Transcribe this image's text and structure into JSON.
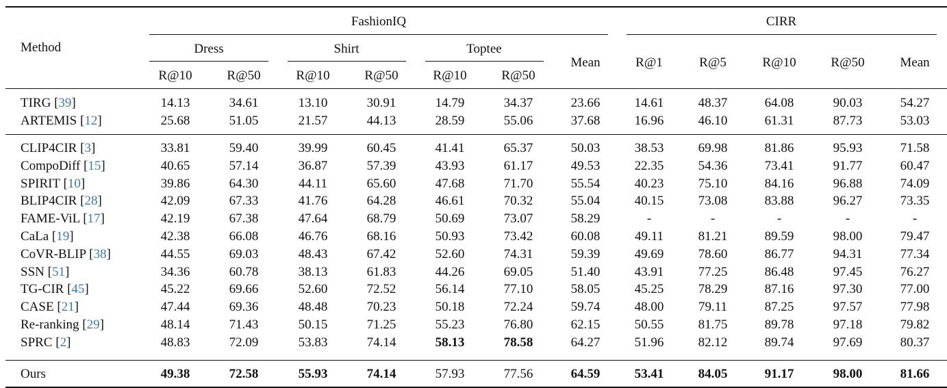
{
  "table": {
    "header": {
      "method": "Method",
      "groups": [
        {
          "label": "FashionIQ"
        },
        {
          "label": "CIRR"
        }
      ],
      "fashioniq_subgroups": [
        "Dress",
        "Shirt",
        "Toptee"
      ],
      "fashioniq_mean": "Mean",
      "fashioniq_metrics": [
        "R@10",
        "R@50",
        "R@10",
        "R@50",
        "R@10",
        "R@50"
      ],
      "cirr_metrics": [
        "R@1",
        "R@5",
        "R@10",
        "R@50",
        "Mean"
      ]
    },
    "columns": [
      "Dress R@10",
      "Dress R@50",
      "Shirt R@10",
      "Shirt R@50",
      "Toptee R@10",
      "Toptee R@50",
      "FashionIQ Mean",
      "CIRR R@1",
      "CIRR R@5",
      "CIRR R@10",
      "CIRR R@50",
      "CIRR Mean"
    ],
    "groups": [
      {
        "rows": [
          {
            "method": "TIRG",
            "cite": "39",
            "values": [
              "14.13",
              "34.61",
              "13.10",
              "30.91",
              "14.79",
              "34.37",
              "23.66",
              "14.61",
              "48.37",
              "64.08",
              "90.03",
              "54.27"
            ],
            "bold": []
          },
          {
            "method": "ARTEMIS",
            "cite": "12",
            "values": [
              "25.68",
              "51.05",
              "21.57",
              "44.13",
              "28.59",
              "55.06",
              "37.68",
              "16.96",
              "46.10",
              "61.31",
              "87.73",
              "53.03"
            ],
            "bold": []
          }
        ]
      },
      {
        "rows": [
          {
            "method": "CLIP4CIR",
            "cite": "3",
            "values": [
              "33.81",
              "59.40",
              "39.99",
              "60.45",
              "41.41",
              "65.37",
              "50.03",
              "38.53",
              "69.98",
              "81.86",
              "95.93",
              "71.58"
            ],
            "bold": []
          },
          {
            "method": "CompoDiff",
            "cite": "15",
            "values": [
              "40.65",
              "57.14",
              "36.87",
              "57.39",
              "43.93",
              "61.17",
              "49.53",
              "22.35",
              "54.36",
              "73.41",
              "91.77",
              "60.47"
            ],
            "bold": []
          },
          {
            "method": "SPIRIT",
            "cite": "10",
            "values": [
              "39.86",
              "64.30",
              "44.11",
              "65.60",
              "47.68",
              "71.70",
              "55.54",
              "40.23",
              "75.10",
              "84.16",
              "96.88",
              "74.09"
            ],
            "bold": []
          },
          {
            "method": "BLIP4CIR",
            "cite": "28",
            "values": [
              "42.09",
              "67.33",
              "41.76",
              "64.28",
              "46.61",
              "70.32",
              "55.04",
              "40.15",
              "73.08",
              "83.88",
              "96.27",
              "73.35"
            ],
            "bold": []
          },
          {
            "method": "FAME-ViL",
            "cite": "17",
            "values": [
              "42.19",
              "67.38",
              "47.64",
              "68.79",
              "50.69",
              "73.07",
              "58.29",
              "-",
              "-",
              "-",
              "-",
              "-"
            ],
            "bold": []
          },
          {
            "method": "CaLa",
            "cite": "19",
            "values": [
              "42.38",
              "66.08",
              "46.76",
              "68.16",
              "50.93",
              "73.42",
              "60.08",
              "49.11",
              "81.21",
              "89.59",
              "98.00",
              "79.47"
            ],
            "bold": []
          },
          {
            "method": "CoVR-BLIP",
            "cite": "38",
            "values": [
              "44.55",
              "69.03",
              "48.43",
              "67.42",
              "52.60",
              "74.31",
              "59.39",
              "49.69",
              "78.60",
              "86.77",
              "94.31",
              "77.34"
            ],
            "bold": []
          },
          {
            "method": "SSN",
            "cite": "51",
            "values": [
              "34.36",
              "60.78",
              "38.13",
              "61.83",
              "44.26",
              "69.05",
              "51.40",
              "43.91",
              "77.25",
              "86.48",
              "97.45",
              "76.27"
            ],
            "bold": []
          },
          {
            "method": "TG-CIR",
            "cite": "45",
            "values": [
              "45.22",
              "69.66",
              "52.60",
              "72.52",
              "56.14",
              "77.10",
              "58.05",
              "45.25",
              "78.29",
              "87.16",
              "97.30",
              "77.00"
            ],
            "bold": []
          },
          {
            "method": "CASE",
            "cite": "21",
            "values": [
              "47.44",
              "69.36",
              "48.48",
              "70.23",
              "50.18",
              "72.24",
              "59.74",
              "48.00",
              "79.11",
              "87.25",
              "97.57",
              "77.98"
            ],
            "bold": []
          },
          {
            "method": "Re-ranking",
            "cite": "29",
            "values": [
              "48.14",
              "71.43",
              "50.15",
              "71.25",
              "55.23",
              "76.80",
              "62.15",
              "50.55",
              "81.75",
              "89.78",
              "97.18",
              "79.82"
            ],
            "bold": []
          },
          {
            "method": "SPRC",
            "cite": "2",
            "values": [
              "48.83",
              "72.09",
              "53.83",
              "74.14",
              "58.13",
              "78.58",
              "64.27",
              "51.96",
              "82.12",
              "89.74",
              "97.69",
              "80.37"
            ],
            "bold": [
              4,
              5
            ]
          }
        ]
      },
      {
        "rows": [
          {
            "method": "Ours",
            "cite": "",
            "values": [
              "49.38",
              "72.58",
              "55.93",
              "74.14",
              "57.93",
              "77.56",
              "64.59",
              "53.41",
              "84.05",
              "91.17",
              "98.00",
              "81.66"
            ],
            "bold": [
              0,
              1,
              2,
              3,
              6,
              7,
              8,
              9,
              10,
              11
            ]
          }
        ]
      }
    ]
  },
  "colors": {
    "text": "#111111",
    "citation": "#3a78b5",
    "rule": "#111111"
  }
}
